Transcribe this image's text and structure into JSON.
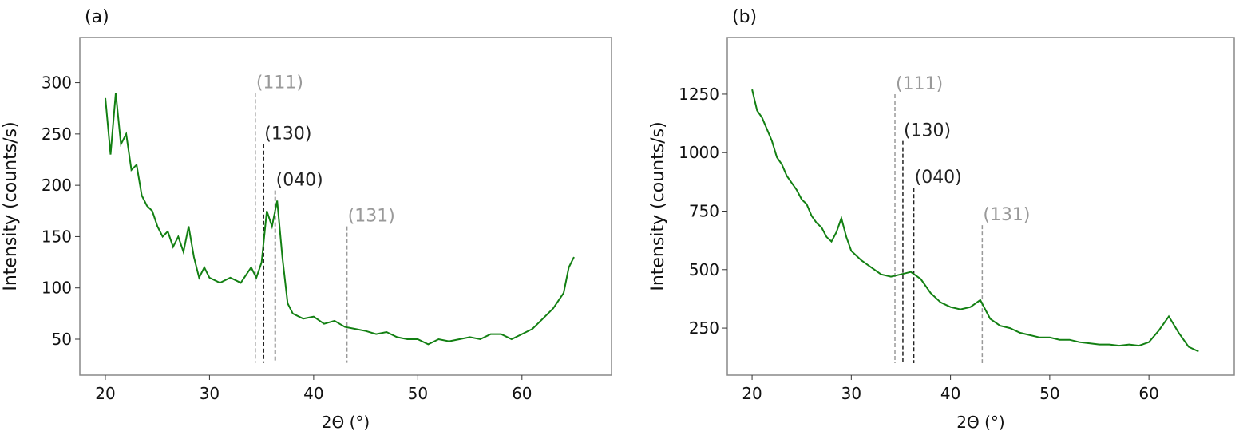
{
  "chart_data": [
    {
      "type": "line",
      "panel_label": "(a)",
      "xlabel": "2Θ (°)",
      "ylabel": "Intensity (counts/s)",
      "color": "#138013",
      "xlim": [
        17.55,
        68.6
      ],
      "ylim": [
        15,
        344
      ],
      "xticks": [
        20,
        30,
        40,
        50,
        60
      ],
      "yticks": [
        50,
        100,
        150,
        200,
        250,
        300
      ],
      "x": [
        20,
        20.5,
        21,
        21.5,
        22,
        22.5,
        23,
        23.5,
        24,
        24.5,
        25,
        25.5,
        26,
        26.5,
        27,
        27.5,
        28,
        28.5,
        29,
        29.5,
        30,
        31,
        32,
        33,
        34,
        34.5,
        35,
        35.5,
        36,
        36.5,
        37,
        37.5,
        38,
        39,
        40,
        41,
        42,
        43,
        44,
        45,
        46,
        47,
        48,
        49,
        50,
        51,
        52,
        53,
        54,
        55,
        56,
        57,
        58,
        59,
        60,
        61,
        62,
        63,
        64,
        64.5,
        65
      ],
      "values": [
        285,
        230,
        290,
        240,
        250,
        215,
        220,
        190,
        180,
        175,
        160,
        150,
        155,
        140,
        150,
        135,
        160,
        130,
        110,
        120,
        110,
        105,
        110,
        105,
        120,
        110,
        125,
        175,
        160,
        185,
        130,
        85,
        75,
        70,
        72,
        65,
        68,
        62,
        60,
        58,
        55,
        57,
        52,
        50,
        50,
        45,
        50,
        48,
        50,
        52,
        50,
        55,
        55,
        50,
        55,
        60,
        70,
        80,
        95,
        120,
        130
      ],
      "annotations": [
        {
          "label": "(111)",
          "x": 34.4,
          "y_top": 290,
          "y_bottom": 27,
          "color": "#999999"
        },
        {
          "label": "(130)",
          "x": 35.2,
          "y_top": 240,
          "y_bottom": 27,
          "color": "#222222"
        },
        {
          "label": "(040)",
          "x": 36.3,
          "y_top": 195,
          "y_bottom": 27,
          "color": "#222222"
        },
        {
          "label": "(131)",
          "x": 43.2,
          "y_top": 160,
          "y_bottom": 27,
          "color": "#999999"
        }
      ]
    },
    {
      "type": "line",
      "panel_label": "(b)",
      "xlabel": "2Θ (°)",
      "ylabel": "Intensity (counts/s)",
      "color": "#138013",
      "xlim": [
        17.5,
        68.6
      ],
      "ylim": [
        49,
        1492
      ],
      "xticks": [
        20,
        30,
        40,
        50,
        60
      ],
      "yticks": [
        250,
        500,
        750,
        1000,
        1250
      ],
      "x": [
        20,
        20.5,
        21,
        21.5,
        22,
        22.5,
        23,
        23.5,
        24,
        24.5,
        25,
        25.5,
        26,
        26.5,
        27,
        27.5,
        28,
        28.5,
        29,
        29.5,
        30,
        31,
        32,
        33,
        34,
        35,
        36,
        37,
        38,
        39,
        40,
        41,
        42,
        43,
        44,
        45,
        46,
        47,
        48,
        49,
        50,
        51,
        52,
        53,
        54,
        55,
        56,
        57,
        58,
        59,
        60,
        61,
        62,
        63,
        64,
        65
      ],
      "values": [
        1270,
        1180,
        1150,
        1100,
        1050,
        980,
        950,
        900,
        870,
        840,
        800,
        780,
        730,
        700,
        680,
        640,
        620,
        660,
        720,
        640,
        580,
        540,
        510,
        480,
        470,
        480,
        490,
        460,
        400,
        360,
        340,
        330,
        340,
        370,
        290,
        260,
        250,
        230,
        220,
        210,
        210,
        200,
        200,
        190,
        185,
        180,
        180,
        175,
        180,
        175,
        190,
        240,
        300,
        230,
        170,
        150
      ],
      "annotations": [
        {
          "label": "(111)",
          "x": 34.4,
          "y_top": 1250,
          "y_bottom": 100,
          "color": "#999999"
        },
        {
          "label": "(130)",
          "x": 35.2,
          "y_top": 1050,
          "y_bottom": 100,
          "color": "#222222"
        },
        {
          "label": "(040)",
          "x": 36.3,
          "y_top": 850,
          "y_bottom": 100,
          "color": "#222222"
        },
        {
          "label": "(131)",
          "x": 43.2,
          "y_top": 690,
          "y_bottom": 100,
          "color": "#999999"
        }
      ]
    }
  ]
}
